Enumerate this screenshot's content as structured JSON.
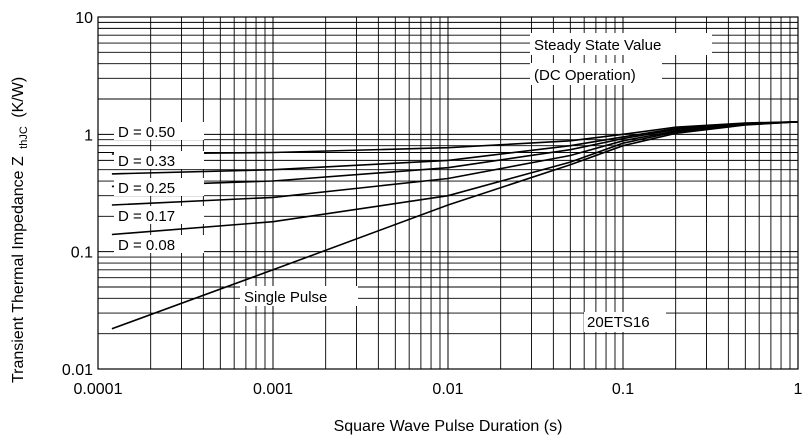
{
  "chart_data": {
    "type": "line",
    "x_scale": "log",
    "y_scale": "log",
    "xlim": [
      0.0001,
      1
    ],
    "ylim": [
      0.01,
      10
    ],
    "xlabel": "Square Wave Pulse Duration (s)",
    "ylabel_main": "Transient Thermal Impedance Z",
    "ylabel_sub": "thJC",
    "ylabel_unit": "(K/W)",
    "x_ticks": [
      {
        "value": 0.0001,
        "label": "0.0001"
      },
      {
        "value": 0.001,
        "label": "0.001"
      },
      {
        "value": 0.01,
        "label": "0.01"
      },
      {
        "value": 0.1,
        "label": "0.1"
      },
      {
        "value": 1,
        "label": "1"
      }
    ],
    "y_ticks": [
      {
        "value": 0.01,
        "label": "0.01"
      },
      {
        "value": 0.1,
        "label": "0.1"
      },
      {
        "value": 1,
        "label": "1"
      },
      {
        "value": 10,
        "label": "10"
      }
    ],
    "grid": true,
    "series": [
      {
        "name": "D = 0.50",
        "x": [
          0.00012,
          0.001,
          0.01,
          0.05,
          0.1,
          0.2,
          0.5,
          1
        ],
        "y": [
          0.68,
          0.7,
          0.77,
          0.88,
          1.0,
          1.15,
          1.25,
          1.28
        ]
      },
      {
        "name": "D = 0.33",
        "x": [
          0.00012,
          0.001,
          0.01,
          0.05,
          0.1,
          0.2,
          0.5,
          1
        ],
        "y": [
          0.46,
          0.5,
          0.6,
          0.8,
          0.95,
          1.12,
          1.24,
          1.28
        ]
      },
      {
        "name": "D = 0.25",
        "x": [
          0.00012,
          0.001,
          0.01,
          0.05,
          0.1,
          0.2,
          0.5,
          1
        ],
        "y": [
          0.36,
          0.4,
          0.52,
          0.74,
          0.92,
          1.1,
          1.23,
          1.28
        ]
      },
      {
        "name": "D = 0.17",
        "x": [
          0.00012,
          0.001,
          0.01,
          0.05,
          0.1,
          0.2,
          0.5,
          1
        ],
        "y": [
          0.25,
          0.29,
          0.42,
          0.66,
          0.88,
          1.07,
          1.22,
          1.28
        ]
      },
      {
        "name": "D = 0.08",
        "x": [
          0.00012,
          0.001,
          0.01,
          0.05,
          0.1,
          0.2,
          0.5,
          1
        ],
        "y": [
          0.14,
          0.18,
          0.3,
          0.58,
          0.84,
          1.05,
          1.21,
          1.28
        ]
      },
      {
        "name": "Single Pulse",
        "x": [
          0.00012,
          0.001,
          0.01,
          0.05,
          0.1,
          0.2,
          0.5,
          1
        ],
        "y": [
          0.022,
          0.07,
          0.25,
          0.55,
          0.8,
          1.02,
          1.2,
          1.28
        ]
      }
    ],
    "annotations": {
      "steady_line1": "Steady State Value",
      "steady_line2": "(DC Operation)",
      "part": "20ETS16"
    }
  }
}
